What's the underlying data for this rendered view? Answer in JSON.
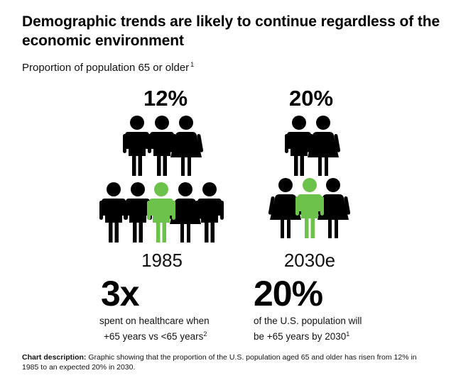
{
  "title": "Demographic trends are likely to continue regardless of the economic environment",
  "subtitle": {
    "text": "Proportion of population 65 or older",
    "footnote": "1"
  },
  "colors": {
    "accent": "#6cc24a",
    "figure": "#000000"
  },
  "panels": [
    {
      "percent": "12%",
      "year": "1985",
      "big_stat": "3x",
      "desc_line1": "spent on healthcare when",
      "desc_line2": "+65 years vs <65 years",
      "desc_footnote": "2"
    },
    {
      "percent": "20%",
      "year": "2030e",
      "big_stat": "20%",
      "desc_line1": "of the U.S. population will",
      "desc_line2": "be +65 years by 2030",
      "desc_footnote": "1"
    }
  ],
  "note": {
    "label": "Chart description:",
    "text": "Graphic showing that the proportion of the U.S. population aged 65 and older has risen from 12% in 1985 to an expected 20% in 2030."
  }
}
